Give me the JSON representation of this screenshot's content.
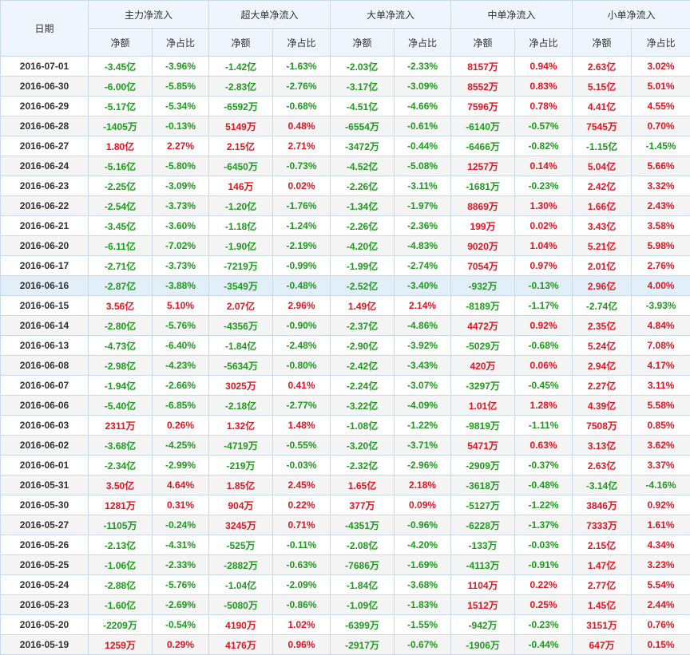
{
  "header": {
    "date_label": "日期",
    "groups": [
      {
        "label": "主力净流入"
      },
      {
        "label": "超大单净流入"
      },
      {
        "label": "大单净流入"
      },
      {
        "label": "中单净流入"
      },
      {
        "label": "小单净流入"
      }
    ],
    "sub_amount": "净额",
    "sub_ratio": "净占比"
  },
  "colors": {
    "positive": "#e4141f",
    "negative": "#1e9a1e",
    "header_bg": "#eef5fc",
    "border": "#c9d9ea",
    "highlight_row": "#e3eff8"
  },
  "highlighted_row_date": "2016-06-16",
  "rows": [
    {
      "date": "2016-07-01",
      "v": [
        "-3.45亿",
        "-3.96%",
        "-1.42亿",
        "-1.63%",
        "-2.03亿",
        "-2.33%",
        "8157万",
        "0.94%",
        "2.63亿",
        "3.02%"
      ]
    },
    {
      "date": "2016-06-30",
      "v": [
        "-6.00亿",
        "-5.85%",
        "-2.83亿",
        "-2.76%",
        "-3.17亿",
        "-3.09%",
        "8552万",
        "0.83%",
        "5.15亿",
        "5.01%"
      ]
    },
    {
      "date": "2016-06-29",
      "v": [
        "-5.17亿",
        "-5.34%",
        "-6592万",
        "-0.68%",
        "-4.51亿",
        "-4.66%",
        "7596万",
        "0.78%",
        "4.41亿",
        "4.55%"
      ]
    },
    {
      "date": "2016-06-28",
      "v": [
        "-1405万",
        "-0.13%",
        "5149万",
        "0.48%",
        "-6554万",
        "-0.61%",
        "-6140万",
        "-0.57%",
        "7545万",
        "0.70%"
      ]
    },
    {
      "date": "2016-06-27",
      "v": [
        "1.80亿",
        "2.27%",
        "2.15亿",
        "2.71%",
        "-3472万",
        "-0.44%",
        "-6466万",
        "-0.82%",
        "-1.15亿",
        "-1.45%"
      ]
    },
    {
      "date": "2016-06-24",
      "v": [
        "-5.16亿",
        "-5.80%",
        "-6450万",
        "-0.73%",
        "-4.52亿",
        "-5.08%",
        "1257万",
        "0.14%",
        "5.04亿",
        "5.66%"
      ]
    },
    {
      "date": "2016-06-23",
      "v": [
        "-2.25亿",
        "-3.09%",
        "146万",
        "0.02%",
        "-2.26亿",
        "-3.11%",
        "-1681万",
        "-0.23%",
        "2.42亿",
        "3.32%"
      ]
    },
    {
      "date": "2016-06-22",
      "v": [
        "-2.54亿",
        "-3.73%",
        "-1.20亿",
        "-1.76%",
        "-1.34亿",
        "-1.97%",
        "8869万",
        "1.30%",
        "1.66亿",
        "2.43%"
      ]
    },
    {
      "date": "2016-06-21",
      "v": [
        "-3.45亿",
        "-3.60%",
        "-1.18亿",
        "-1.24%",
        "-2.26亿",
        "-2.36%",
        "199万",
        "0.02%",
        "3.43亿",
        "3.58%"
      ]
    },
    {
      "date": "2016-06-20",
      "v": [
        "-6.11亿",
        "-7.02%",
        "-1.90亿",
        "-2.19%",
        "-4.20亿",
        "-4.83%",
        "9020万",
        "1.04%",
        "5.21亿",
        "5.98%"
      ]
    },
    {
      "date": "2016-06-17",
      "v": [
        "-2.71亿",
        "-3.73%",
        "-7219万",
        "-0.99%",
        "-1.99亿",
        "-2.74%",
        "7054万",
        "0.97%",
        "2.01亿",
        "2.76%"
      ]
    },
    {
      "date": "2016-06-16",
      "v": [
        "-2.87亿",
        "-3.88%",
        "-3549万",
        "-0.48%",
        "-2.52亿",
        "-3.40%",
        "-932万",
        "-0.13%",
        "2.96亿",
        "4.00%"
      ]
    },
    {
      "date": "2016-06-15",
      "v": [
        "3.56亿",
        "5.10%",
        "2.07亿",
        "2.96%",
        "1.49亿",
        "2.14%",
        "-8189万",
        "-1.17%",
        "-2.74亿",
        "-3.93%"
      ]
    },
    {
      "date": "2016-06-14",
      "v": [
        "-2.80亿",
        "-5.76%",
        "-4356万",
        "-0.90%",
        "-2.37亿",
        "-4.86%",
        "4472万",
        "0.92%",
        "2.35亿",
        "4.84%"
      ]
    },
    {
      "date": "2016-06-13",
      "v": [
        "-4.73亿",
        "-6.40%",
        "-1.84亿",
        "-2.48%",
        "-2.90亿",
        "-3.92%",
        "-5029万",
        "-0.68%",
        "5.24亿",
        "7.08%"
      ]
    },
    {
      "date": "2016-06-08",
      "v": [
        "-2.98亿",
        "-4.23%",
        "-5634万",
        "-0.80%",
        "-2.42亿",
        "-3.43%",
        "420万",
        "0.06%",
        "2.94亿",
        "4.17%"
      ]
    },
    {
      "date": "2016-06-07",
      "v": [
        "-1.94亿",
        "-2.66%",
        "3025万",
        "0.41%",
        "-2.24亿",
        "-3.07%",
        "-3297万",
        "-0.45%",
        "2.27亿",
        "3.11%"
      ]
    },
    {
      "date": "2016-06-06",
      "v": [
        "-5.40亿",
        "-6.85%",
        "-2.18亿",
        "-2.77%",
        "-3.22亿",
        "-4.09%",
        "1.01亿",
        "1.28%",
        "4.39亿",
        "5.58%"
      ]
    },
    {
      "date": "2016-06-03",
      "v": [
        "2311万",
        "0.26%",
        "1.32亿",
        "1.48%",
        "-1.08亿",
        "-1.22%",
        "-9819万",
        "-1.11%",
        "7508万",
        "0.85%"
      ]
    },
    {
      "date": "2016-06-02",
      "v": [
        "-3.68亿",
        "-4.25%",
        "-4719万",
        "-0.55%",
        "-3.20亿",
        "-3.71%",
        "5471万",
        "0.63%",
        "3.13亿",
        "3.62%"
      ]
    },
    {
      "date": "2016-06-01",
      "v": [
        "-2.34亿",
        "-2.99%",
        "-219万",
        "-0.03%",
        "-2.32亿",
        "-2.96%",
        "-2909万",
        "-0.37%",
        "2.63亿",
        "3.37%"
      ]
    },
    {
      "date": "2016-05-31",
      "v": [
        "3.50亿",
        "4.64%",
        "1.85亿",
        "2.45%",
        "1.65亿",
        "2.18%",
        "-3618万",
        "-0.48%",
        "-3.14亿",
        "-4.16%"
      ]
    },
    {
      "date": "2016-05-30",
      "v": [
        "1281万",
        "0.31%",
        "904万",
        "0.22%",
        "377万",
        "0.09%",
        "-5127万",
        "-1.22%",
        "3846万",
        "0.92%"
      ]
    },
    {
      "date": "2016-05-27",
      "v": [
        "-1105万",
        "-0.24%",
        "3245万",
        "0.71%",
        "-4351万",
        "-0.96%",
        "-6228万",
        "-1.37%",
        "7333万",
        "1.61%"
      ]
    },
    {
      "date": "2016-05-26",
      "v": [
        "-2.13亿",
        "-4.31%",
        "-525万",
        "-0.11%",
        "-2.08亿",
        "-4.20%",
        "-133万",
        "-0.03%",
        "2.15亿",
        "4.34%"
      ]
    },
    {
      "date": "2016-05-25",
      "v": [
        "-1.06亿",
        "-2.33%",
        "-2882万",
        "-0.63%",
        "-7686万",
        "-1.69%",
        "-4113万",
        "-0.91%",
        "1.47亿",
        "3.23%"
      ]
    },
    {
      "date": "2016-05-24",
      "v": [
        "-2.88亿",
        "-5.76%",
        "-1.04亿",
        "-2.09%",
        "-1.84亿",
        "-3.68%",
        "1104万",
        "0.22%",
        "2.77亿",
        "5.54%"
      ]
    },
    {
      "date": "2016-05-23",
      "v": [
        "-1.60亿",
        "-2.69%",
        "-5080万",
        "-0.86%",
        "-1.09亿",
        "-1.83%",
        "1512万",
        "0.25%",
        "1.45亿",
        "2.44%"
      ]
    },
    {
      "date": "2016-05-20",
      "v": [
        "-2209万",
        "-0.54%",
        "4190万",
        "1.02%",
        "-6399万",
        "-1.55%",
        "-942万",
        "-0.23%",
        "3151万",
        "0.76%"
      ]
    },
    {
      "date": "2016-05-19",
      "v": [
        "1259万",
        "0.29%",
        "4176万",
        "0.96%",
        "-2917万",
        "-0.67%",
        "-1906万",
        "-0.44%",
        "647万",
        "0.15%"
      ]
    }
  ]
}
